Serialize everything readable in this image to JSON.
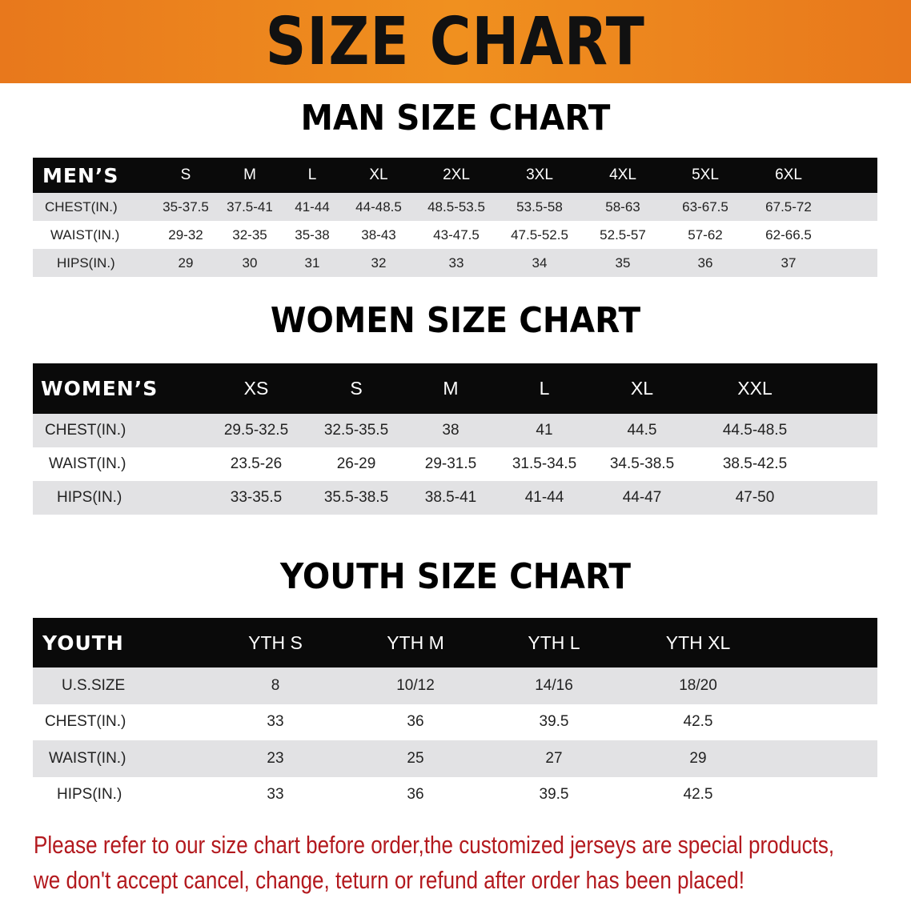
{
  "banner_title": "SIZE CHART",
  "men": {
    "title": "MAN SIZE CHART",
    "header_label": "MEN’S",
    "sizes": [
      "S",
      "M",
      "L",
      "XL",
      "2XL",
      "3XL",
      "4XL",
      "5XL",
      "6XL"
    ],
    "rows": [
      {
        "label": "CHEST(IN.)",
        "values": [
          "35-37.5",
          "37.5-41",
          "41-44",
          "44-48.5",
          "48.5-53.5",
          "53.5-58",
          "58-63",
          "63-67.5",
          "67.5-72"
        ]
      },
      {
        "label": "WAIST(IN.)",
        "values": [
          "29-32",
          "32-35",
          "35-38",
          "38-43",
          "43-47.5",
          "47.5-52.5",
          "52.5-57",
          "57-62",
          "62-66.5"
        ]
      },
      {
        "label": "HIPS(IN.)",
        "values": [
          "29",
          "30",
          "31",
          "32",
          "33",
          "34",
          "35",
          "36",
          "37"
        ]
      }
    ]
  },
  "women": {
    "title": "WOMEN SIZE CHART",
    "header_label": "WOMEN’S",
    "sizes": [
      "XS",
      "S",
      "M",
      "L",
      "XL",
      "XXL"
    ],
    "rows": [
      {
        "label": "CHEST(IN.)",
        "values": [
          "29.5-32.5",
          "32.5-35.5",
          "38",
          "41",
          "44.5",
          "44.5-48.5"
        ]
      },
      {
        "label": "WAIST(IN.)",
        "values": [
          "23.5-26",
          "26-29",
          "29-31.5",
          "31.5-34.5",
          "34.5-38.5",
          "38.5-42.5"
        ]
      },
      {
        "label": "HIPS(IN.)",
        "values": [
          "33-35.5",
          "35.5-38.5",
          "38.5-41",
          "41-44",
          "44-47",
          "47-50"
        ]
      }
    ]
  },
  "youth": {
    "title": "YOUTH SIZE CHART",
    "header_label": "YOUTH",
    "sizes": [
      "YTH S",
      "YTH M",
      "YTH L",
      "YTH XL"
    ],
    "rows": [
      {
        "label": "U.S.SIZE",
        "values": [
          "8",
          "10/12",
          "14/16",
          "18/20"
        ]
      },
      {
        "label": "CHEST(IN.)",
        "values": [
          "33",
          "36",
          "39.5",
          "42.5"
        ]
      },
      {
        "label": "WAIST(IN.)",
        "values": [
          "23",
          "25",
          "27",
          "29"
        ]
      },
      {
        "label": "HIPS(IN.)",
        "values": [
          "33",
          "36",
          "39.5",
          "42.5"
        ]
      }
    ]
  },
  "notice": {
    "line1": "Please refer to our size chart before order,the customized jerseys are special products,",
    "line2": "we don't accept cancel, change, teturn or refund after order has been placed!"
  },
  "colors": {
    "banner": "#f0901f",
    "header": "#0a0a0a",
    "stripe": "#e2e2e4",
    "notice": "#b3191e"
  }
}
